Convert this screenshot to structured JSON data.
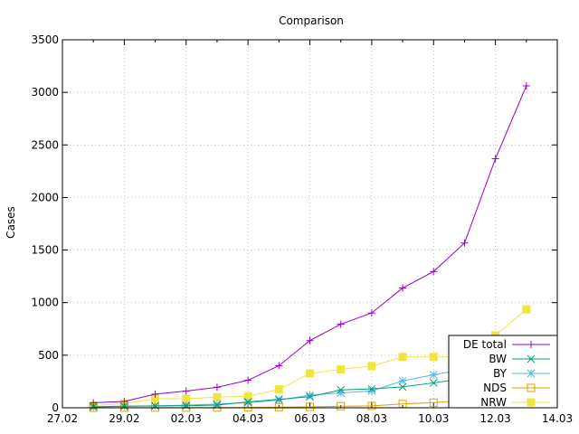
{
  "chart_data": {
    "type": "line",
    "title": "Comparison",
    "xlabel": "",
    "ylabel": "Cases",
    "xlim": [
      0,
      16
    ],
    "ylim": [
      0,
      3500
    ],
    "grid": true,
    "legend_position": "bottom-right",
    "x_tick_labels": [
      "27.02",
      "29.02",
      "02.03",
      "04.03",
      "06.03",
      "08.03",
      "10.03",
      "12.03",
      "14.03"
    ],
    "y_ticks": [
      0,
      500,
      1000,
      1500,
      2000,
      2500,
      3000,
      3500
    ],
    "x": [
      1,
      2,
      3,
      4,
      5,
      6,
      7,
      8,
      9,
      10,
      11,
      12,
      13,
      14,
      15
    ],
    "series": [
      {
        "name": "DE total",
        "color": "#9400d3",
        "marker": "plus",
        "values": [
          48,
          60,
          130,
          159,
          195,
          262,
          400,
          639,
          795,
          902,
          1139,
          1296,
          1567,
          2369,
          3062
        ]
      },
      {
        "name": "BW",
        "color": "#009e73",
        "marker": "cross",
        "values": [
          10,
          15,
          17,
          19,
          26,
          56,
          81,
          105,
          170,
          179,
          199,
          237,
          277,
          454,
          454
        ]
      },
      {
        "name": "BY",
        "color": "#56b4e9",
        "marker": "star",
        "values": [
          6,
          14,
          19,
          25,
          35,
          48,
          73,
          120,
          142,
          160,
          256,
          314,
          366,
          500,
          558
        ]
      },
      {
        "name": "NDS",
        "color": "#e69f00",
        "marker": "open-square",
        "values": [
          0,
          1,
          1,
          1,
          2,
          3,
          6,
          9,
          15,
          18,
          37,
          49,
          68,
          130,
          234
        ]
      },
      {
        "name": "NRW",
        "color": "#f0e442",
        "marker": "filled-square",
        "values": [
          21,
          40,
          86,
          86,
          101,
          110,
          175,
          326,
          366,
          397,
          484,
          484,
          484,
          688,
          936
        ]
      }
    ]
  }
}
